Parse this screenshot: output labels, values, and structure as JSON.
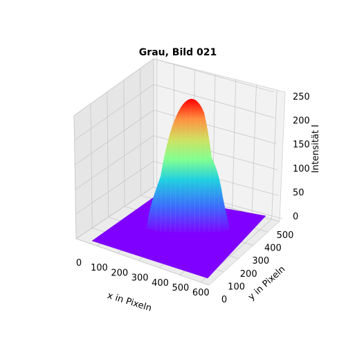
{
  "chart_data": {
    "type": "surface3d",
    "title": "Grau, Bild 021",
    "xlabel": "x in Pixeln",
    "ylabel": "y in Pixeln",
    "zlabel": "Intensität I",
    "xlim": [
      0,
      640
    ],
    "ylim": [
      0,
      480
    ],
    "zlim": [
      0,
      250
    ],
    "xticks": [
      "0",
      "100",
      "200",
      "300",
      "400",
      "500",
      "600"
    ],
    "yticks": [
      "0",
      "100",
      "200",
      "300",
      "400",
      "500"
    ],
    "zticks": [
      "0",
      "50",
      "100",
      "150",
      "200",
      "250"
    ],
    "colormap": "rainbow",
    "grid": true,
    "peak": {
      "x": 360,
      "y": 300,
      "z": 238
    },
    "baseline": 0
  }
}
